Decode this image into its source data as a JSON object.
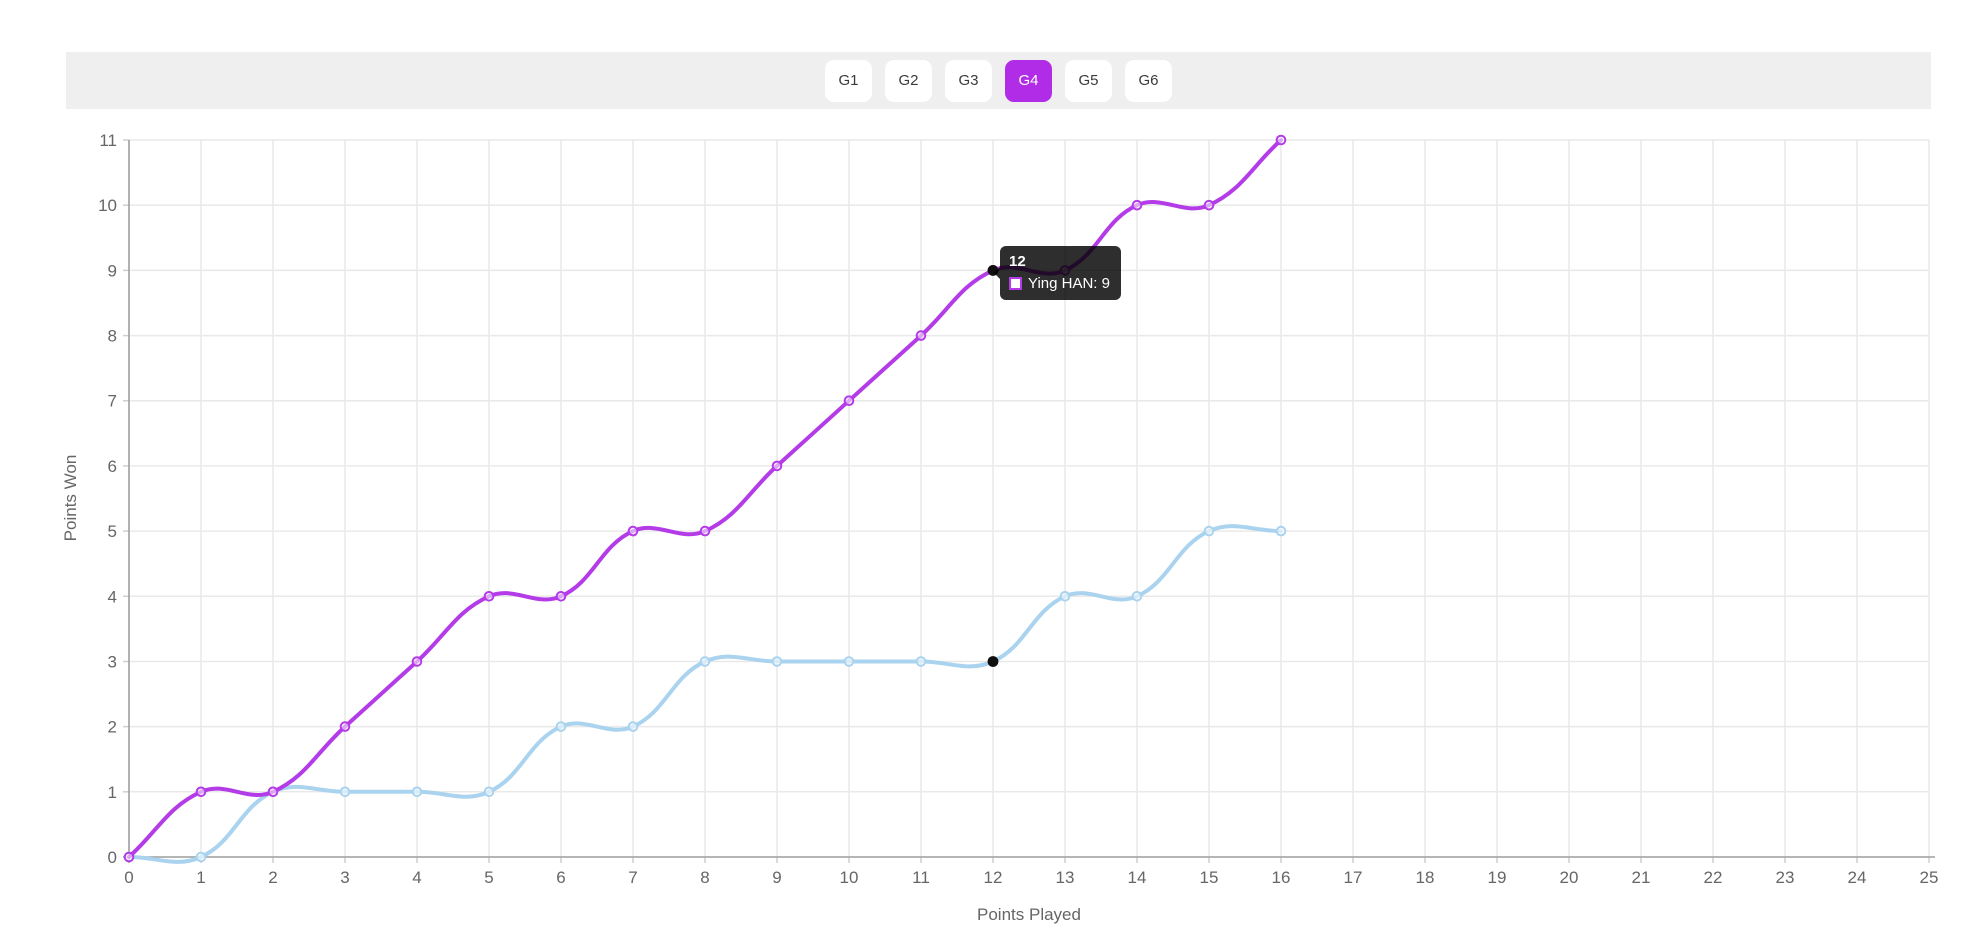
{
  "toolbar": {
    "games": [
      {
        "label": "G1",
        "active": false
      },
      {
        "label": "G2",
        "active": false
      },
      {
        "label": "G3",
        "active": false
      },
      {
        "label": "G4",
        "active": true
      },
      {
        "label": "G5",
        "active": false
      },
      {
        "label": "G6",
        "active": false
      }
    ]
  },
  "chart_data": {
    "type": "line",
    "xlabel": "Points Played",
    "ylabel": "Points Won",
    "x": [
      0,
      1,
      2,
      3,
      4,
      5,
      6,
      7,
      8,
      9,
      10,
      11,
      12,
      13,
      14,
      15,
      16
    ],
    "series": [
      {
        "label": "Ying HAN",
        "color": "#b43be8",
        "values": [
          0,
          1,
          1,
          2,
          3,
          4,
          4,
          5,
          5,
          6,
          7,
          8,
          9,
          9,
          10,
          10,
          11
        ]
      },
      {
        "label": null,
        "color": "#a9d3ee",
        "values": [
          0,
          0,
          1,
          1,
          1,
          1,
          2,
          2,
          3,
          3,
          3,
          3,
          3,
          4,
          4,
          5,
          5
        ]
      }
    ],
    "xlim": [
      0,
      25
    ],
    "ylim": [
      0,
      11
    ],
    "x_ticks": [
      0,
      1,
      2,
      3,
      4,
      5,
      6,
      7,
      8,
      9,
      10,
      11,
      12,
      13,
      14,
      15,
      16,
      17,
      18,
      19,
      20,
      21,
      22,
      23,
      24,
      25
    ],
    "y_ticks": [
      0,
      1,
      2,
      3,
      4,
      5,
      6,
      7,
      8,
      9,
      10,
      11
    ],
    "grid": true,
    "legend_position": "none",
    "hover_x": 12,
    "tooltip": {
      "title": "12",
      "rows": [
        {
          "text": "Ying HAN: 9",
          "swatch_border": "#b43be8",
          "swatch_fill": "#ffffff"
        }
      ]
    }
  },
  "colors": {
    "accent": "#b02ce6",
    "topbar_bg": "#efefef",
    "grid": "#e9e9e9",
    "axis": "#a0a0a0",
    "tick_text": "#666666",
    "hover_dot": "#0f0f0f",
    "tooltip_bg": "rgba(0,0,0,0.82)"
  }
}
